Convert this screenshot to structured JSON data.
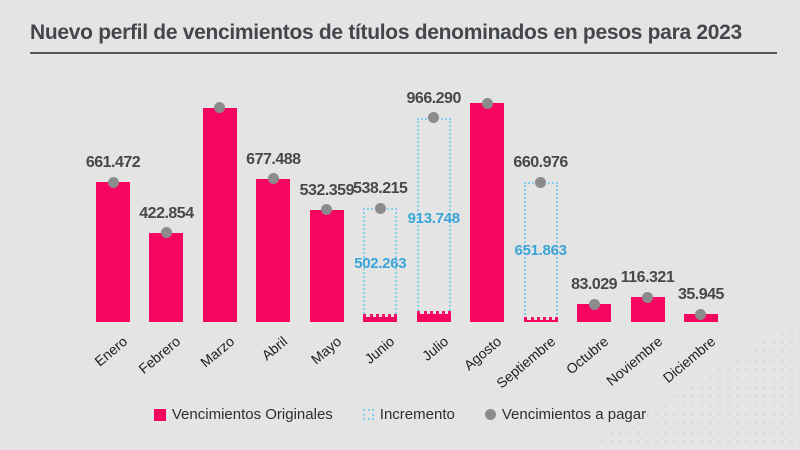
{
  "title": "Nuevo perfil de vencimientos de títulos denominados en pesos para 2023",
  "colors": {
    "background": "#e4e4e4",
    "pink": "#f5055f",
    "dash_blue": "#85cfee",
    "blue_text": "#3ba5d8",
    "dot_gray": "#8b8b8b",
    "title_text": "#43474c",
    "value_text": "#484848"
  },
  "legend": [
    {
      "label": "Vencimientos Originales",
      "swatch": "pink-square"
    },
    {
      "label": "Incremento",
      "swatch": "dashed-square"
    },
    {
      "label": "Vencimientos a pagar",
      "swatch": "gray-dot"
    }
  ],
  "chart_data": {
    "type": "bar",
    "title": "Nuevo perfil de vencimientos de títulos denominados en pesos para 2023",
    "categories": [
      "Enero",
      "Febrero",
      "Marzo",
      "Abril",
      "Mayo",
      "Junio",
      "Julio",
      "Agosto",
      "Septiembre",
      "Octubre",
      "Noviembre",
      "Diciembre"
    ],
    "series": [
      {
        "name": "Vencimientos Originales",
        "values": [
          661472,
          422854,
          1014000,
          677488,
          532359,
          35952,
          52542,
          1037000,
          9113,
          83029,
          116321,
          35945
        ]
      },
      {
        "name": "Incremento",
        "values": [
          0,
          0,
          0,
          0,
          0,
          502263,
          913748,
          0,
          651863,
          0,
          0,
          0
        ]
      },
      {
        "name": "Vencimientos a pagar",
        "values": [
          661472,
          422854,
          1014000,
          677488,
          532359,
          538215,
          966290,
          1037000,
          660976,
          83029,
          116321,
          35945
        ]
      }
    ],
    "total_labels": [
      "661.472",
      "422.854",
      "",
      "677.488",
      "532.359",
      "538.215",
      "966.290",
      "",
      "660.976",
      "83.029",
      "116.321",
      "35.945"
    ],
    "increment_labels": [
      "",
      "",
      "",
      "",
      "",
      "502.263",
      "913.748",
      "",
      "651.863",
      "",
      "",
      ""
    ],
    "unlabeled_bars_estimated": [
      "Marzo",
      "Agosto"
    ],
    "ylim": [
      0,
      1050000
    ],
    "grid": false,
    "legend_position": "bottom"
  }
}
